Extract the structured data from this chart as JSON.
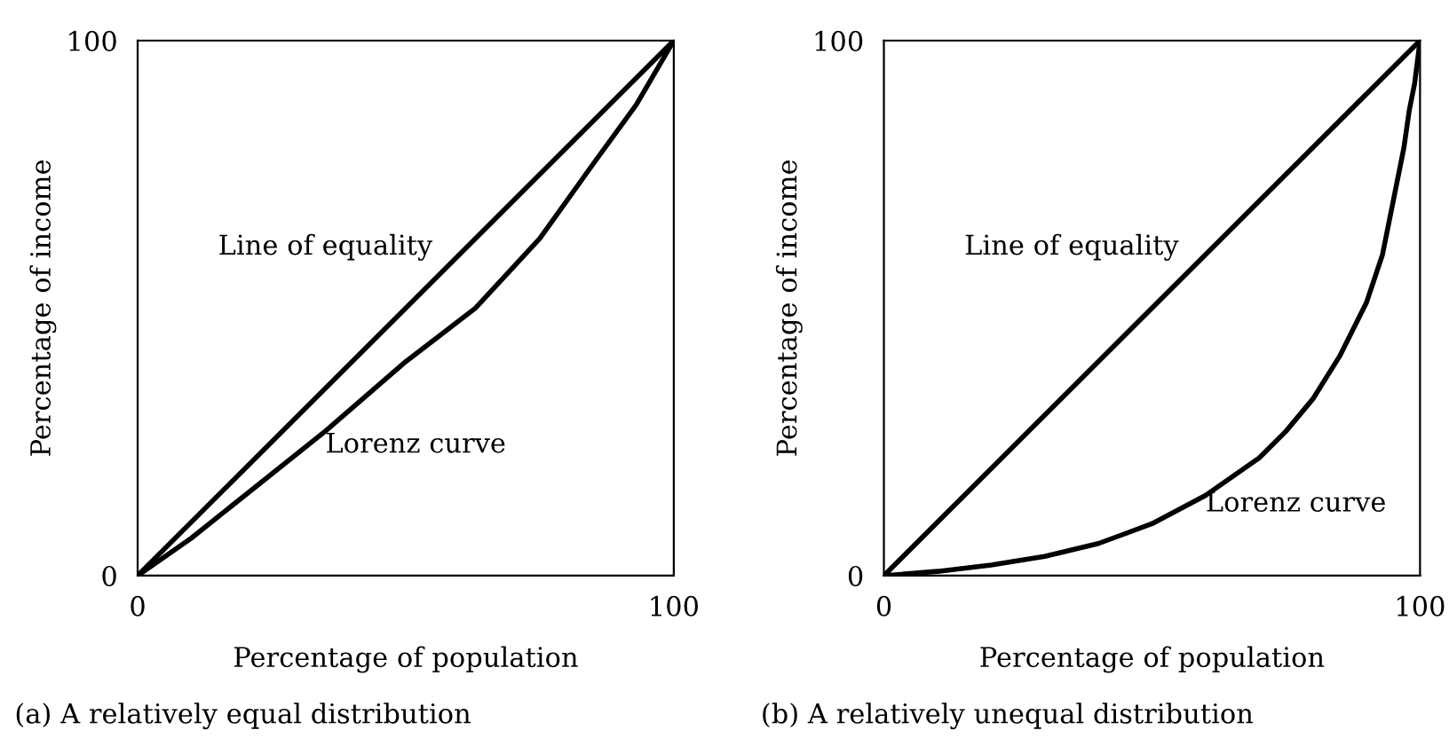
{
  "chart_data": [
    {
      "type": "line",
      "title": "(a) A relatively equal distribution",
      "xlabel": "Percentage of population",
      "ylabel": "Percentage of income",
      "xlim": [
        0,
        100
      ],
      "ylim": [
        0,
        100
      ],
      "xticks": [
        0,
        100
      ],
      "yticks": [
        0,
        100
      ],
      "grid": false,
      "legend": false,
      "series": [
        {
          "name": "Line of equality",
          "color": "#000000",
          "x": [
            0,
            100
          ],
          "values": [
            0,
            100
          ]
        },
        {
          "name": "Lorenz curve",
          "color": "#000000",
          "x": [
            0,
            10,
            20,
            35,
            50,
            63,
            75,
            85,
            93,
            100
          ],
          "values": [
            0,
            7,
            15,
            27,
            40,
            50,
            63,
            77,
            88,
            100
          ]
        }
      ]
    },
    {
      "type": "line",
      "title": "(b) A relatively unequal distribution",
      "xlabel": "Percentage of population",
      "ylabel": "Percentage of income",
      "xlim": [
        0,
        100
      ],
      "ylim": [
        0,
        100
      ],
      "xticks": [
        0,
        100
      ],
      "yticks": [
        0,
        100
      ],
      "grid": false,
      "legend": false,
      "series": [
        {
          "name": "Line of equality",
          "color": "#000000",
          "x": [
            0,
            100
          ],
          "values": [
            0,
            100
          ]
        },
        {
          "name": "Lorenz curve",
          "color": "#000000",
          "x": [
            0,
            10,
            20,
            30,
            40,
            50,
            60,
            70,
            75,
            80,
            85,
            90,
            93,
            95,
            97,
            98,
            99,
            100
          ],
          "values": [
            0,
            0.8,
            2,
            3.6,
            6,
            9.7,
            15,
            22,
            27,
            33,
            41,
            51,
            60,
            70,
            80,
            87,
            92,
            100
          ]
        }
      ]
    }
  ]
}
